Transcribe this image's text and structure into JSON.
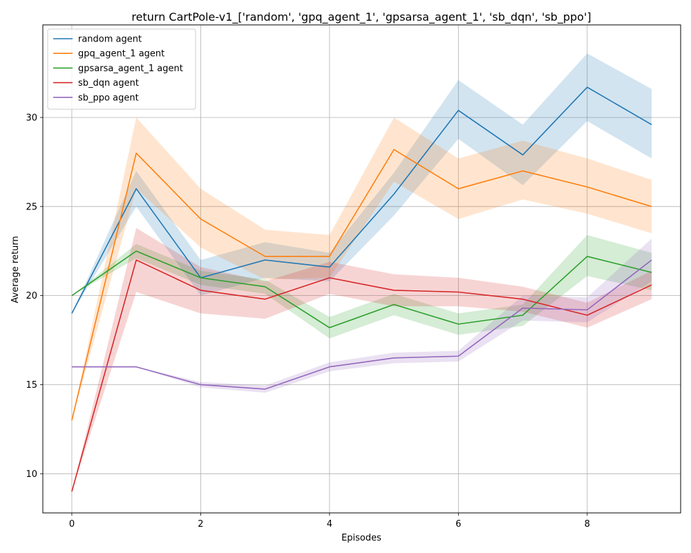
{
  "chart_data": {
    "type": "line",
    "title": "return CartPole-v1_['random', 'gpq_agent_1', 'gpsarsa_agent_1', 'sb_dqn', 'sb_ppo']",
    "xlabel": "Episodes",
    "ylabel": "Average return",
    "xlim": [
      -0.45,
      9.45
    ],
    "ylim": [
      7.8,
      35.2
    ],
    "xticks": [
      0,
      2,
      4,
      6,
      8
    ],
    "yticks": [
      10,
      15,
      20,
      25,
      30
    ],
    "grid": true,
    "legend_position": "top-left",
    "x": [
      0,
      1,
      2,
      3,
      4,
      5,
      6,
      7,
      8,
      9
    ],
    "series": [
      {
        "name": "random agent",
        "color": "#1f77b4",
        "values": [
          19.0,
          26.0,
          21.0,
          22.0,
          21.6,
          25.7,
          30.4,
          27.9,
          31.7,
          29.6
        ],
        "lower": [
          19.0,
          25.0,
          20.0,
          21.0,
          20.8,
          24.5,
          28.8,
          26.2,
          29.8,
          27.7
        ],
        "upper": [
          19.0,
          27.0,
          22.0,
          23.0,
          22.4,
          26.9,
          32.1,
          29.6,
          33.6,
          31.6
        ]
      },
      {
        "name": "gpq_agent_1 agent",
        "color": "#ff7f0e",
        "values": [
          13.0,
          28.0,
          24.3,
          22.2,
          22.2,
          28.2,
          26.0,
          27.0,
          26.1,
          25.0
        ],
        "lower": [
          13.0,
          26.0,
          22.7,
          20.9,
          21.0,
          26.4,
          24.3,
          25.4,
          24.6,
          23.5
        ],
        "upper": [
          13.0,
          30.0,
          26.0,
          23.7,
          23.4,
          30.0,
          27.7,
          28.7,
          27.7,
          26.5
        ]
      },
      {
        "name": "gpsarsa_agent_1 agent",
        "color": "#2ca02c",
        "values": [
          20.0,
          22.5,
          21.0,
          20.5,
          18.2,
          19.5,
          18.4,
          18.9,
          22.2,
          21.3
        ],
        "lower": [
          20.0,
          22.1,
          20.6,
          20.1,
          17.6,
          18.9,
          17.8,
          18.3,
          21.1,
          20.3
        ],
        "upper": [
          20.0,
          22.9,
          21.4,
          20.9,
          18.8,
          20.1,
          19.0,
          19.5,
          23.4,
          22.4
        ]
      },
      {
        "name": "sb_dqn agent",
        "color": "#d62728",
        "values": [
          9.0,
          22.0,
          20.3,
          19.8,
          21.0,
          20.3,
          20.2,
          19.8,
          18.9,
          20.6
        ],
        "lower": [
          9.0,
          20.2,
          19.0,
          18.7,
          20.1,
          19.4,
          19.4,
          19.1,
          18.2,
          19.8
        ],
        "upper": [
          9.0,
          23.8,
          21.6,
          20.8,
          21.9,
          21.2,
          21.0,
          20.5,
          19.6,
          21.4
        ]
      },
      {
        "name": "sb_ppo agent",
        "color": "#9467bd",
        "values": [
          16.0,
          16.0,
          15.0,
          14.75,
          16.0,
          16.5,
          16.6,
          19.3,
          19.2,
          22.0
        ],
        "lower": [
          16.0,
          16.0,
          14.85,
          14.55,
          15.75,
          16.2,
          16.3,
          18.6,
          18.5,
          20.8
        ],
        "upper": [
          16.0,
          16.0,
          15.15,
          14.95,
          16.25,
          16.8,
          16.9,
          20.0,
          19.9,
          23.2
        ]
      }
    ]
  }
}
